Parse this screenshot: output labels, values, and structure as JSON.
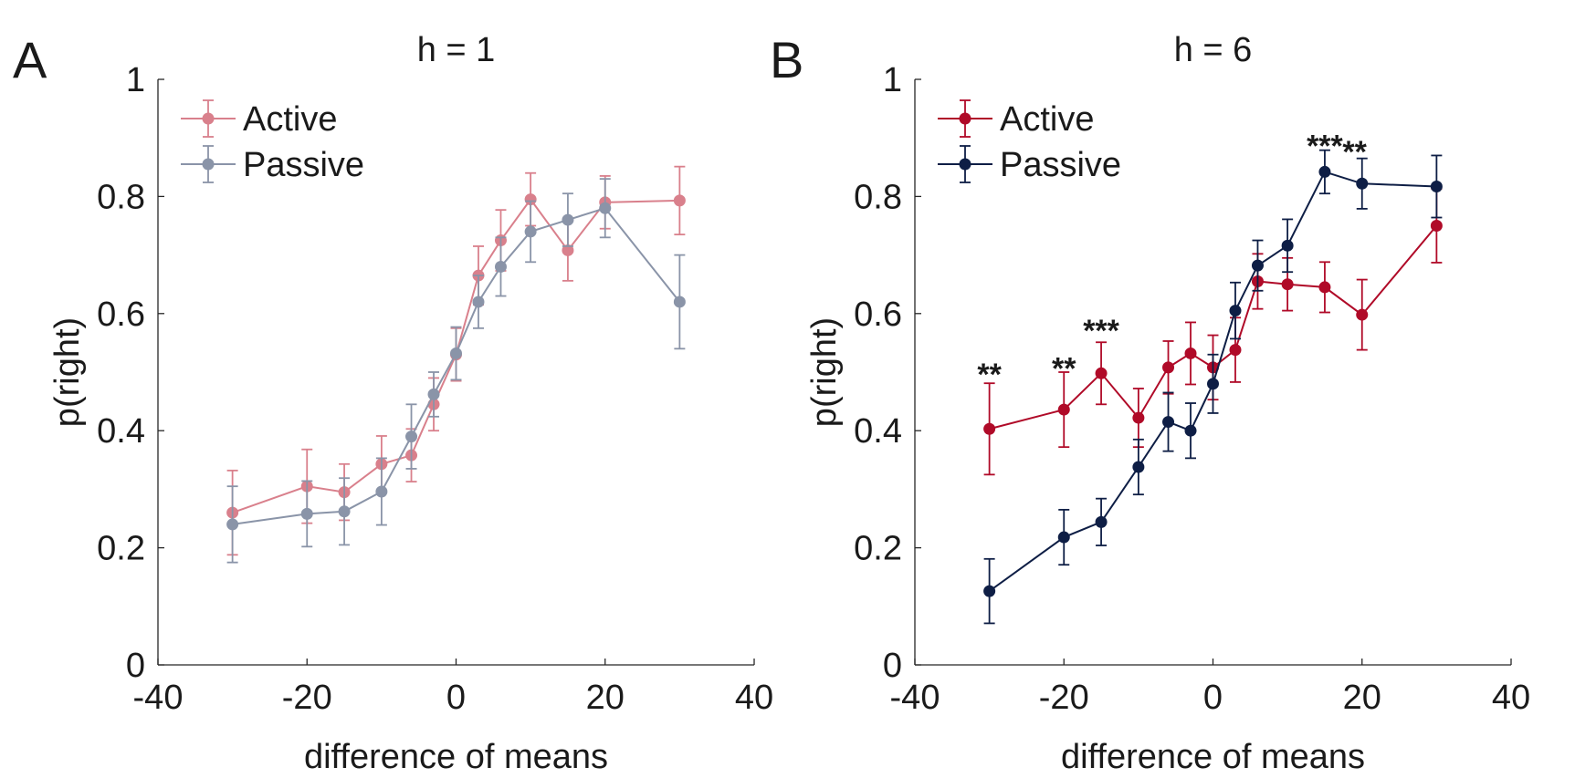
{
  "chart_data": [
    {
      "type": "line",
      "panel_label": "A",
      "title": "h = 1",
      "xlabel": "difference of means",
      "ylabel": "p(right)",
      "xlim": [
        -40,
        40
      ],
      "ylim": [
        0,
        1
      ],
      "xticks": [
        -40,
        -20,
        0,
        20,
        40
      ],
      "yticks": [
        0,
        0.2,
        0.4,
        0.6,
        0.8,
        1
      ],
      "xtick_labels": [
        "-40",
        "-20",
        "0",
        "20",
        "40"
      ],
      "ytick_labels": [
        "0",
        "0.2",
        "0.4",
        "0.6",
        "0.8",
        "1"
      ],
      "legend_position": "top-left",
      "grid": false,
      "series": [
        {
          "name": "Active",
          "color": "#d9808c",
          "x": [
            -30,
            -20,
            -15,
            -10,
            -6,
            -3,
            0,
            3,
            6,
            10,
            15,
            20,
            30
          ],
          "y": [
            0.26,
            0.305,
            0.295,
            0.343,
            0.358,
            0.445,
            0.53,
            0.665,
            0.725,
            0.795,
            0.708,
            0.79,
            0.793
          ],
          "err": [
            0.072,
            0.063,
            0.048,
            0.048,
            0.045,
            0.045,
            0.045,
            0.05,
            0.052,
            0.045,
            0.052,
            0.045,
            0.058
          ]
        },
        {
          "name": "Passive",
          "color": "#8a94a8",
          "x": [
            -30,
            -20,
            -15,
            -10,
            -6,
            -3,
            0,
            3,
            6,
            10,
            15,
            20,
            30
          ],
          "y": [
            0.24,
            0.258,
            0.262,
            0.296,
            0.39,
            0.462,
            0.532,
            0.62,
            0.68,
            0.74,
            0.76,
            0.78,
            0.62
          ],
          "err": [
            0.065,
            0.056,
            0.057,
            0.057,
            0.055,
            0.038,
            0.045,
            0.045,
            0.05,
            0.052,
            0.045,
            0.05,
            0.08
          ]
        }
      ],
      "annotations": []
    },
    {
      "type": "line",
      "panel_label": "B",
      "title": "h = 6",
      "xlabel": "difference of means",
      "ylabel": "p(right)",
      "xlim": [
        -40,
        40
      ],
      "ylim": [
        0,
        1
      ],
      "xticks": [
        -40,
        -20,
        0,
        20,
        40
      ],
      "yticks": [
        0,
        0.2,
        0.4,
        0.6,
        0.8,
        1
      ],
      "xtick_labels": [
        "-40",
        "-20",
        "0",
        "20",
        "40"
      ],
      "ytick_labels": [
        "0",
        "0.2",
        "0.4",
        "0.6",
        "0.8",
        "1"
      ],
      "legend_position": "top-left",
      "grid": false,
      "series": [
        {
          "name": "Active",
          "color": "#b00a28",
          "x": [
            -30,
            -20,
            -15,
            -10,
            -6,
            -3,
            0,
            3,
            6,
            10,
            15,
            20,
            30
          ],
          "y": [
            0.403,
            0.436,
            0.498,
            0.422,
            0.508,
            0.532,
            0.508,
            0.538,
            0.655,
            0.65,
            0.645,
            0.598,
            0.75
          ],
          "err": [
            0.078,
            0.064,
            0.053,
            0.05,
            0.045,
            0.053,
            0.055,
            0.055,
            0.047,
            0.045,
            0.043,
            0.06,
            0.063
          ]
        },
        {
          "name": "Passive",
          "color": "#0e1e45",
          "x": [
            -30,
            -20,
            -15,
            -10,
            -6,
            -3,
            0,
            3,
            6,
            10,
            15,
            20,
            30
          ],
          "y": [
            0.126,
            0.218,
            0.244,
            0.338,
            0.415,
            0.4,
            0.48,
            0.605,
            0.682,
            0.716,
            0.842,
            0.822,
            0.817
          ],
          "err": [
            0.055,
            0.047,
            0.04,
            0.047,
            0.05,
            0.047,
            0.05,
            0.048,
            0.043,
            0.045,
            0.037,
            0.043,
            0.053
          ]
        }
      ],
      "annotations": [
        {
          "text": "**",
          "x": -30,
          "y": 0.5
        },
        {
          "text": "**",
          "x": -20,
          "y": 0.51
        },
        {
          "text": "***",
          "x": -15,
          "y": 0.575
        },
        {
          "text": "***",
          "x": 15,
          "y": 0.89
        },
        {
          "text": "**",
          "x": 19,
          "y": 0.88
        }
      ]
    }
  ]
}
